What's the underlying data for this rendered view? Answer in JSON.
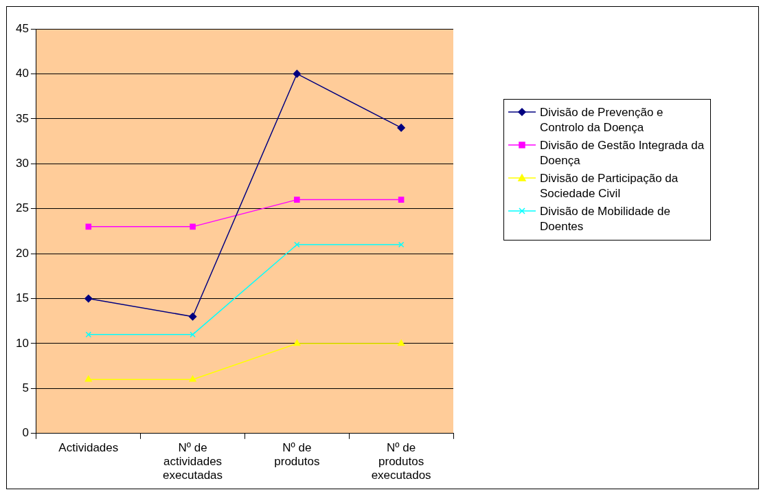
{
  "chart_data": {
    "type": "line",
    "categories": [
      "Actividades",
      "Nº de actividades executadas",
      "Nº de produtos",
      "Nº de produtos executados"
    ],
    "series": [
      {
        "name": "Divisão de Prevenção e Controlo da Doença",
        "color": "#000080",
        "marker": "diamond",
        "values": [
          15,
          13,
          40,
          34
        ]
      },
      {
        "name": "Divisão de Gestão Integrada da Doença",
        "color": "#ff00ff",
        "marker": "square",
        "values": [
          23,
          23,
          26,
          26
        ]
      },
      {
        "name": "Divisão de Participação da Sociedade Civil",
        "color": "#ffff00",
        "marker": "triangle",
        "values": [
          6,
          6,
          10,
          10
        ]
      },
      {
        "name": "Divisão de Mobilidade de Doentes",
        "color": "#00ffff",
        "marker": "cross",
        "values": [
          11,
          11,
          21,
          21
        ]
      }
    ],
    "ylim": [
      0,
      45
    ],
    "yticks": [
      0,
      5,
      10,
      15,
      20,
      25,
      30,
      35,
      40,
      45
    ],
    "grid": "y",
    "legend": "right",
    "line_style": "solid"
  }
}
